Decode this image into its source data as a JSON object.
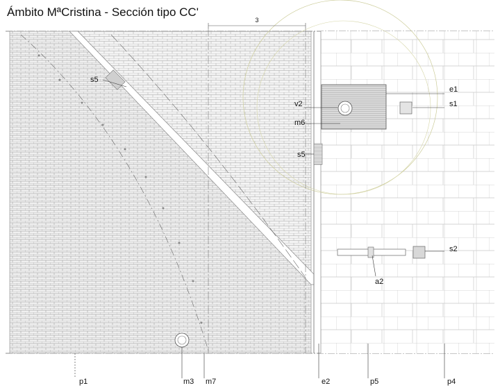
{
  "title": "Ámbito MªCristina - Sección tipo CC'",
  "dimension": "3",
  "labels": {
    "s5_upper": "s5",
    "s5_lower": "s5",
    "v2": "v2",
    "m6": "m6",
    "e1": "e1",
    "s1": "s1",
    "s2": "s2",
    "a2": "a2",
    "p1": "p1",
    "m3": "m3",
    "m7": "m7",
    "e2": "e2",
    "p5": "p5",
    "p4": "p4"
  },
  "colors": {
    "line": "#555555",
    "paving_fill": "#eeeeee",
    "circle_guides": "#d8d8a8",
    "block_fill": "#bdbdbd"
  }
}
